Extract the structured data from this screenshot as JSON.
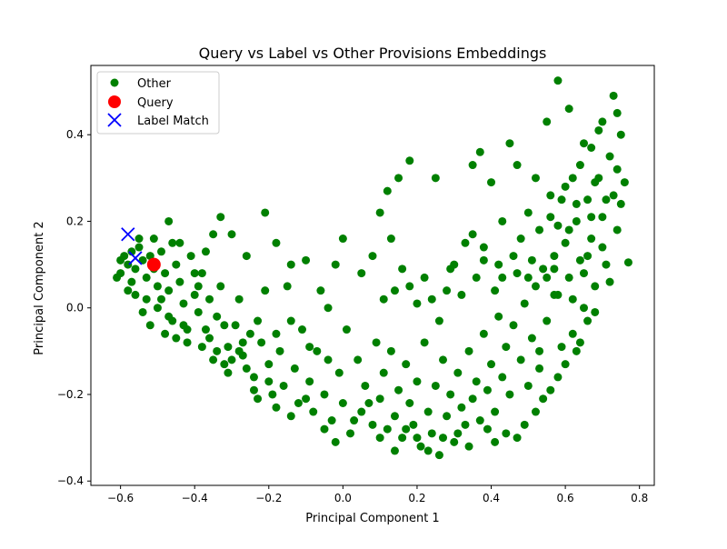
{
  "chart_data": {
    "type": "scatter",
    "title": "Query vs Label vs Other Provisions Embeddings",
    "xlabel": "Principal Component 1",
    "ylabel": "Principal Component 2",
    "xlim": [
      -0.68,
      0.84
    ],
    "ylim": [
      -0.41,
      0.56
    ],
    "xticks": [
      -0.6,
      -0.4,
      -0.2,
      0.0,
      0.2,
      0.4,
      0.6,
      0.8
    ],
    "xtick_labels": [
      "−0.6",
      "−0.4",
      "−0.2",
      "0.0",
      "0.2",
      "0.4",
      "0.6",
      "0.8"
    ],
    "yticks": [
      -0.4,
      -0.2,
      0.0,
      0.2,
      0.4
    ],
    "ytick_labels": [
      "−0.4",
      "−0.2",
      "0.0",
      "0.2",
      "0.4"
    ],
    "grid": false,
    "legend_position": "top-left",
    "series": [
      {
        "name": "Other",
        "color": "#008000",
        "marker": "circle",
        "points": [
          [
            -0.59,
            0.12
          ],
          [
            -0.58,
            0.1
          ],
          [
            -0.57,
            0.13
          ],
          [
            -0.56,
            0.09
          ],
          [
            -0.6,
            0.08
          ],
          [
            -0.55,
            0.14
          ],
          [
            -0.54,
            0.11
          ],
          [
            -0.53,
            0.07
          ],
          [
            -0.57,
            0.06
          ],
          [
            -0.52,
            0.12
          ],
          [
            -0.51,
            0.09
          ],
          [
            -0.5,
            0.05
          ],
          [
            -0.49,
            0.13
          ],
          [
            -0.48,
            0.08
          ],
          [
            -0.56,
            0.03
          ],
          [
            -0.53,
            0.02
          ],
          [
            -0.5,
            0.0
          ],
          [
            -0.47,
            0.04
          ],
          [
            -0.45,
            0.1
          ],
          [
            -0.46,
            0.15
          ],
          [
            -0.44,
            0.06
          ],
          [
            -0.43,
            0.01
          ],
          [
            -0.46,
            -0.03
          ],
          [
            -0.42,
            -0.05
          ],
          [
            -0.4,
            0.03
          ],
          [
            -0.38,
            0.08
          ],
          [
            -0.41,
            0.12
          ],
          [
            -0.39,
            -0.01
          ],
          [
            -0.36,
            -0.07
          ],
          [
            -0.34,
            -0.02
          ],
          [
            -0.37,
            0.13
          ],
          [
            -0.35,
            0.17
          ],
          [
            -0.33,
            0.05
          ],
          [
            -0.31,
            -0.09
          ],
          [
            -0.29,
            -0.04
          ],
          [
            -0.32,
            -0.13
          ],
          [
            -0.28,
            0.02
          ],
          [
            -0.27,
            -0.11
          ],
          [
            -0.25,
            -0.06
          ],
          [
            -0.24,
            -0.16
          ],
          [
            -0.22,
            -0.08
          ],
          [
            -0.21,
            0.04
          ],
          [
            -0.2,
            -0.13
          ],
          [
            -0.19,
            -0.2
          ],
          [
            -0.17,
            -0.1
          ],
          [
            -0.16,
            -0.18
          ],
          [
            -0.15,
            0.05
          ],
          [
            -0.13,
            -0.14
          ],
          [
            -0.12,
            -0.22
          ],
          [
            -0.11,
            -0.05
          ],
          [
            -0.09,
            -0.17
          ],
          [
            -0.08,
            -0.24
          ],
          [
            -0.07,
            -0.1
          ],
          [
            -0.05,
            -0.2
          ],
          [
            -0.04,
            0.0
          ],
          [
            -0.03,
            -0.26
          ],
          [
            -0.01,
            -0.15
          ],
          [
            0.0,
            -0.22
          ],
          [
            0.01,
            -0.05
          ],
          [
            0.02,
            -0.29
          ],
          [
            0.04,
            -0.12
          ],
          [
            0.05,
            -0.24
          ],
          [
            0.06,
            -0.18
          ],
          [
            0.08,
            -0.27
          ],
          [
            0.09,
            -0.08
          ],
          [
            0.1,
            -0.21
          ],
          [
            0.11,
            -0.15
          ],
          [
            0.12,
            -0.28
          ],
          [
            0.13,
            -0.1
          ],
          [
            0.14,
            -0.25
          ],
          [
            0.15,
            -0.19
          ],
          [
            0.16,
            -0.3
          ],
          [
            0.17,
            -0.13
          ],
          [
            0.18,
            -0.22
          ],
          [
            0.19,
            -0.27
          ],
          [
            0.2,
            -0.17
          ],
          [
            0.21,
            -0.32
          ],
          [
            0.22,
            -0.08
          ],
          [
            0.23,
            -0.24
          ],
          [
            0.24,
            -0.29
          ],
          [
            0.25,
            -0.18
          ],
          [
            0.26,
            -0.34
          ],
          [
            0.27,
            -0.12
          ],
          [
            0.28,
            -0.25
          ],
          [
            0.29,
            -0.2
          ],
          [
            0.3,
            -0.31
          ],
          [
            0.31,
            -0.15
          ],
          [
            0.32,
            -0.23
          ],
          [
            0.33,
            -0.27
          ],
          [
            0.34,
            -0.1
          ],
          [
            0.35,
            -0.21
          ],
          [
            0.36,
            -0.17
          ],
          [
            0.37,
            -0.26
          ],
          [
            0.38,
            -0.06
          ],
          [
            0.39,
            -0.19
          ],
          [
            0.4,
            -0.13
          ],
          [
            0.41,
            -0.24
          ],
          [
            0.42,
            -0.02
          ],
          [
            0.43,
            -0.16
          ],
          [
            0.44,
            -0.09
          ],
          [
            0.45,
            -0.2
          ],
          [
            0.46,
            -0.04
          ],
          [
            0.47,
            -0.3
          ],
          [
            0.48,
            -0.12
          ],
          [
            0.49,
            0.01
          ],
          [
            0.5,
            -0.18
          ],
          [
            0.51,
            -0.07
          ],
          [
            0.52,
            0.05
          ],
          [
            0.53,
            -0.14
          ],
          [
            0.54,
            0.09
          ],
          [
            0.55,
            -0.03
          ],
          [
            0.56,
            -0.19
          ],
          [
            0.57,
            0.12
          ],
          [
            0.58,
            0.03
          ],
          [
            0.59,
            -0.09
          ],
          [
            0.6,
            0.15
          ],
          [
            0.61,
            0.07
          ],
          [
            0.62,
            -0.06
          ],
          [
            0.63,
            0.2
          ],
          [
            0.64,
            0.11
          ],
          [
            0.65,
            0.0
          ],
          [
            0.66,
            0.25
          ],
          [
            0.67,
            0.16
          ],
          [
            0.68,
            0.05
          ],
          [
            0.69,
            0.3
          ],
          [
            0.7,
            0.21
          ],
          [
            0.71,
            0.1
          ],
          [
            0.72,
            0.35
          ],
          [
            0.73,
            0.26
          ],
          [
            0.74,
            0.18
          ],
          [
            0.75,
            0.4
          ],
          [
            0.76,
            0.29
          ],
          [
            0.77,
            0.105
          ],
          [
            0.74,
            0.45
          ],
          [
            0.73,
            0.49
          ],
          [
            0.7,
            0.43
          ],
          [
            0.65,
            0.38
          ],
          [
            0.61,
            0.46
          ],
          [
            0.58,
            0.525
          ],
          [
            0.55,
            0.43
          ],
          [
            0.52,
            0.3
          ],
          [
            0.5,
            0.22
          ],
          [
            0.47,
            0.33
          ],
          [
            0.45,
            0.38
          ],
          [
            0.43,
            0.2
          ],
          [
            0.4,
            0.29
          ],
          [
            0.37,
            0.36
          ],
          [
            0.35,
            0.33
          ],
          [
            0.33,
            0.15
          ],
          [
            0.3,
            0.1
          ],
          [
            0.28,
            0.04
          ],
          [
            0.25,
            0.3
          ],
          [
            0.22,
            0.07
          ],
          [
            0.18,
            0.34
          ],
          [
            0.15,
            0.3
          ],
          [
            0.12,
            0.27
          ],
          [
            0.1,
            0.22
          ],
          [
            0.08,
            0.12
          ],
          [
            0.05,
            0.08
          ],
          [
            0.0,
            0.16
          ],
          [
            -0.02,
            0.1
          ],
          [
            -0.06,
            0.04
          ],
          [
            -0.1,
            0.11
          ],
          [
            -0.14,
            0.1
          ],
          [
            -0.18,
            0.15
          ],
          [
            -0.21,
            0.22
          ],
          [
            -0.26,
            0.12
          ],
          [
            -0.3,
            0.17
          ],
          [
            -0.33,
            0.21
          ],
          [
            -0.47,
            0.2
          ],
          [
            0.18,
            0.05
          ],
          [
            0.2,
            0.01
          ],
          [
            0.24,
            0.02
          ],
          [
            0.26,
            -0.03
          ],
          [
            0.29,
            0.09
          ],
          [
            0.32,
            0.03
          ],
          [
            0.36,
            0.07
          ],
          [
            0.38,
            0.11
          ],
          [
            0.41,
            0.04
          ],
          [
            0.43,
            0.07
          ],
          [
            0.46,
            0.12
          ],
          [
            0.48,
            0.16
          ],
          [
            0.51,
            0.11
          ],
          [
            0.53,
            0.18
          ],
          [
            0.56,
            0.21
          ],
          [
            0.59,
            0.25
          ],
          [
            0.62,
            0.3
          ],
          [
            0.64,
            0.33
          ],
          [
            0.67,
            0.37
          ],
          [
            0.69,
            0.41
          ],
          [
            0.6,
            -0.13
          ],
          [
            0.63,
            -0.1
          ],
          [
            0.66,
            -0.03
          ],
          [
            0.58,
            -0.16
          ],
          [
            0.54,
            -0.21
          ],
          [
            0.52,
            -0.24
          ],
          [
            0.49,
            -0.27
          ],
          [
            0.44,
            -0.29
          ],
          [
            0.41,
            -0.31
          ],
          [
            0.39,
            -0.28
          ],
          [
            0.34,
            -0.32
          ],
          [
            0.31,
            -0.29
          ],
          [
            0.27,
            -0.3
          ],
          [
            0.23,
            -0.33
          ],
          [
            0.2,
            -0.3
          ],
          [
            0.17,
            -0.28
          ],
          [
            0.14,
            -0.33
          ],
          [
            0.1,
            -0.3
          ],
          [
            0.07,
            -0.22
          ],
          [
            0.03,
            -0.26
          ],
          [
            -0.02,
            -0.31
          ],
          [
            -0.05,
            -0.28
          ],
          [
            -0.1,
            -0.21
          ],
          [
            -0.14,
            -0.25
          ],
          [
            -0.18,
            -0.23
          ],
          [
            -0.23,
            -0.21
          ],
          [
            -0.26,
            -0.14
          ],
          [
            -0.3,
            -0.12
          ],
          [
            -0.34,
            -0.1
          ],
          [
            -0.38,
            -0.09
          ],
          [
            -0.42,
            -0.08
          ],
          [
            -0.45,
            -0.07
          ],
          [
            -0.48,
            -0.06
          ],
          [
            -0.52,
            -0.04
          ],
          [
            -0.54,
            -0.01
          ],
          [
            -0.58,
            0.04
          ],
          [
            -0.61,
            0.07
          ],
          [
            -0.6,
            0.11
          ],
          [
            -0.55,
            0.16
          ],
          [
            -0.51,
            0.16
          ],
          [
            -0.44,
            0.15
          ],
          [
            -0.4,
            0.08
          ],
          [
            -0.36,
            0.02
          ],
          [
            -0.32,
            -0.04
          ],
          [
            -0.27,
            -0.08
          ],
          [
            -0.23,
            -0.03
          ],
          [
            -0.18,
            -0.06
          ],
          [
            -0.14,
            -0.03
          ],
          [
            -0.09,
            -0.09
          ],
          [
            -0.04,
            -0.12
          ],
          [
            0.13,
            0.16
          ],
          [
            0.16,
            0.09
          ],
          [
            0.14,
            0.04
          ],
          [
            0.11,
            0.02
          ],
          [
            0.35,
            0.17
          ],
          [
            0.38,
            0.14
          ],
          [
            0.42,
            0.1
          ],
          [
            0.47,
            0.08
          ],
          [
            0.5,
            0.07
          ],
          [
            0.57,
            0.09
          ],
          [
            0.62,
            0.02
          ],
          [
            0.65,
            0.08
          ],
          [
            0.68,
            -0.01
          ],
          [
            0.7,
            0.14
          ],
          [
            0.72,
            0.06
          ],
          [
            0.66,
            0.12
          ],
          [
            0.61,
            0.18
          ],
          [
            0.57,
            0.03
          ],
          [
            0.55,
            0.07
          ],
          [
            0.53,
            -0.1
          ],
          [
            0.64,
            -0.08
          ],
          [
            0.67,
            0.21
          ],
          [
            0.71,
            0.25
          ],
          [
            0.75,
            0.24
          ],
          [
            0.74,
            0.32
          ],
          [
            0.68,
            0.29
          ],
          [
            0.63,
            0.24
          ],
          [
            0.58,
            0.19
          ],
          [
            0.6,
            0.28
          ],
          [
            0.56,
            0.26
          ],
          [
            -0.49,
            0.02
          ],
          [
            -0.47,
            -0.02
          ],
          [
            -0.43,
            -0.04
          ],
          [
            -0.39,
            0.05
          ],
          [
            -0.37,
            -0.05
          ],
          [
            -0.35,
            -0.12
          ],
          [
            -0.31,
            -0.15
          ],
          [
            -0.28,
            -0.1
          ],
          [
            -0.24,
            -0.19
          ],
          [
            -0.2,
            -0.17
          ]
        ]
      },
      {
        "name": "Query",
        "color": "#ff0000",
        "marker": "circle-large",
        "points": [
          [
            -0.51,
            0.1
          ]
        ]
      },
      {
        "name": "Label Match",
        "color": "#0000ff",
        "marker": "x",
        "points": [
          [
            -0.58,
            0.17
          ],
          [
            -0.56,
            0.115
          ]
        ]
      }
    ]
  }
}
